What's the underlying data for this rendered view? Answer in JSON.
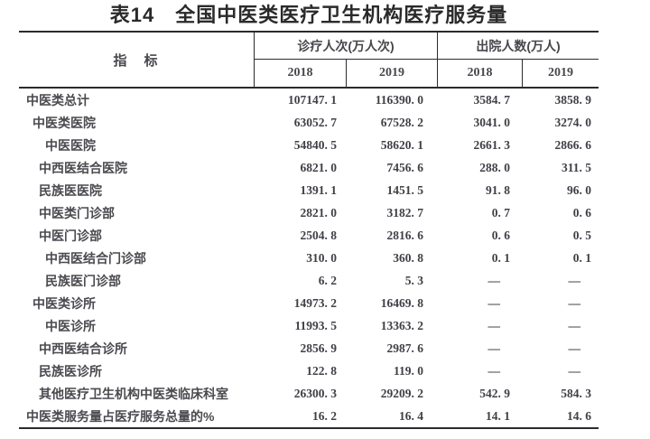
{
  "page": {
    "title": "表14　全国中医类医疗卫生机构医疗服务量"
  },
  "table": {
    "header": {
      "indicator": "指　标",
      "group_visits": "诊疗人次(万人次)",
      "group_discharge": "出院人数(万人)",
      "visits_year_2018": "2018",
      "visits_year_2019": "2019",
      "discharge_year_2018": "2018",
      "discharge_year_2019": "2019"
    },
    "rows": [
      {
        "label": "中医类总计",
        "v18": "107147. 1",
        "v19": "116390. 0",
        "d18": "3584. 7",
        "d19": "3858. 9"
      },
      {
        "label": "中医类医院",
        "v18": "63052. 7",
        "v19": "67528. 2",
        "d18": "3041. 0",
        "d19": "3274. 0"
      },
      {
        "label": "中医医院",
        "v18": "54840. 5",
        "v19": "58620. 1",
        "d18": "2661. 3",
        "d19": "2866. 6"
      },
      {
        "label": "中西医结合医院",
        "v18": "6821. 0",
        "v19": "7456. 6",
        "d18": "288. 0",
        "d19": "311. 5"
      },
      {
        "label": "民族医医院",
        "v18": "1391. 1",
        "v19": "1451. 5",
        "d18": "91. 8",
        "d19": "96. 0"
      },
      {
        "label": "中医类门诊部",
        "v18": "2821. 0",
        "v19": "3182. 7",
        "d18": "0. 7",
        "d19": "0. 6"
      },
      {
        "label": "中医门诊部",
        "v18": "2504. 8",
        "v19": "2816. 6",
        "d18": "0. 6",
        "d19": "0. 5"
      },
      {
        "label": "中西医结合门诊部",
        "v18": "310. 0",
        "v19": "360. 8",
        "d18": "0. 1",
        "d19": "0. 1"
      },
      {
        "label": "民族医门诊部",
        "v18": "6. 2",
        "v19": "5. 3",
        "d18": "—",
        "d19": "—"
      },
      {
        "label": "中医类诊所",
        "v18": "14973. 2",
        "v19": "16469. 8",
        "d18": "—",
        "d19": "—"
      },
      {
        "label": "中医诊所",
        "v18": "11993. 5",
        "v19": "13363. 2",
        "d18": "—",
        "d19": "—"
      },
      {
        "label": "中西医结合诊所",
        "v18": "2856. 9",
        "v19": "2987. 6",
        "d18": "—",
        "d19": "—"
      },
      {
        "label": "民族医诊所",
        "v18": "122. 8",
        "v19": "119. 0",
        "d18": "—",
        "d19": "—"
      },
      {
        "label": "其他医疗卫生机构中医类临床科室",
        "v18": "26300. 3",
        "v19": "29209. 2",
        "d18": "542. 9",
        "d19": "584. 3"
      },
      {
        "label": "中医类服务量占医疗服务总量的%",
        "v18": "16. 2",
        "v19": "16. 4",
        "d18": "14. 1",
        "d19": "14. 6"
      }
    ]
  },
  "colors": {
    "rule": "#2b2b2d",
    "title_text": "#2a2a2a",
    "label_text": "#4a4a4f",
    "number_text": "#3f3f46"
  }
}
